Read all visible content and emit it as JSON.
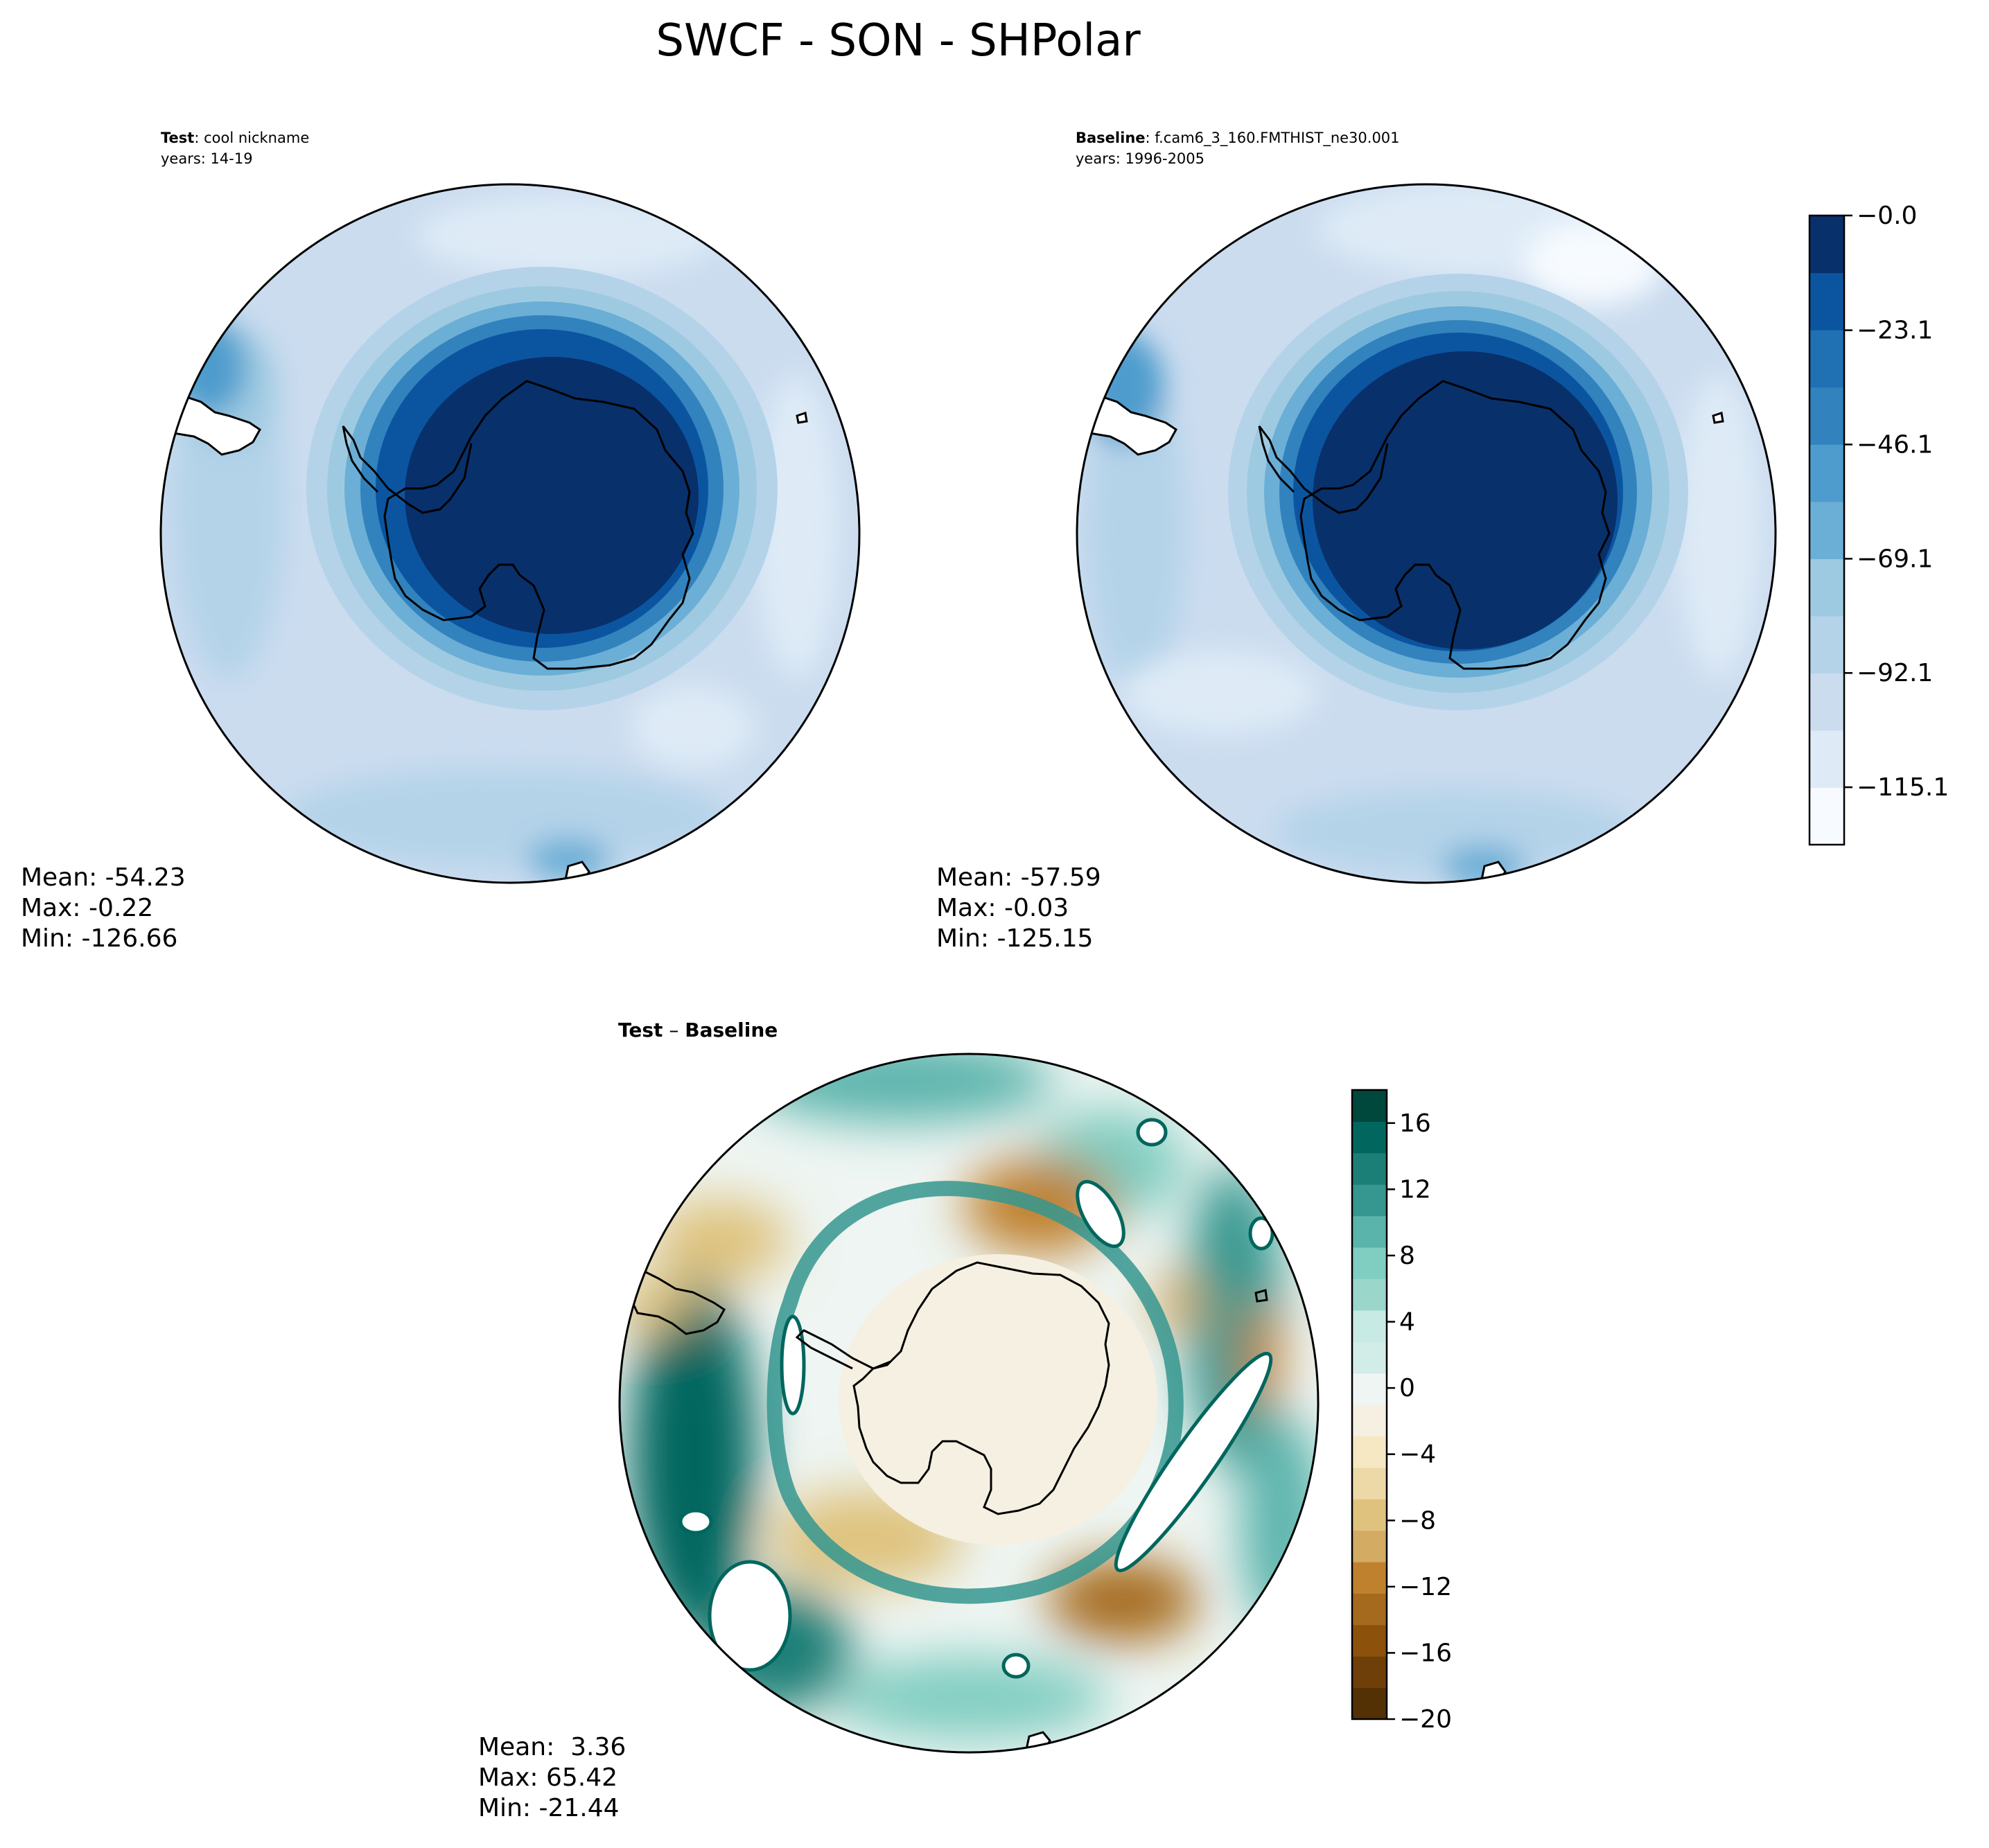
{
  "title": "SWCF - SON - SHPolar",
  "colors": {
    "blues": [
      "#f7fbff",
      "#deebf7",
      "#cbdcef",
      "#b4d3e9",
      "#9ecae1",
      "#6baed6",
      "#4e9ccd",
      "#3182bd",
      "#2070b4",
      "#0b55a0",
      "#08306b"
    ],
    "brbg": [
      "#543005",
      "#6e3f08",
      "#8c510a",
      "#a66a1e",
      "#bf812d",
      "#d4ab63",
      "#dfc27d",
      "#ecd9a7",
      "#f6e8c3",
      "#f5f0e1",
      "#eef5f2",
      "#d2ece7",
      "#c7eae5",
      "#9bd6cb",
      "#80cdc1",
      "#5ab4ac",
      "#35978f",
      "#1b7f77",
      "#01665e",
      "#00473c"
    ]
  },
  "chart_data": [
    {
      "type": "heatmap",
      "projection": "south-polar-stereographic",
      "label_bold": "Test",
      "label_text": ": cool nickname",
      "years": "years: 14-19",
      "stats": {
        "mean": "Mean: -54.23",
        "max": "Max: -0.22",
        "min": "Min: -126.66"
      }
    },
    {
      "type": "heatmap",
      "projection": "south-polar-stereographic",
      "label_bold": "Baseline",
      "label_text": ": f.cam6_3_160.FMTHIST_ne30.001",
      "years": "years: 1996-2005",
      "stats": {
        "mean": "Mean: -57.59",
        "max": "Max: -0.03",
        "min": "Min: -125.15"
      }
    },
    {
      "type": "heatmap",
      "projection": "south-polar-stereographic",
      "label_bold": "Test",
      "label_text": " – ",
      "label_bold2": "Baseline",
      "stats": {
        "mean": "Mean:  3.36",
        "max": "Max: 65.42",
        "min": "Min: -21.44"
      }
    }
  ],
  "colorbar_top": {
    "vmin": -126.66,
    "vmax": 0,
    "levels": 11,
    "ticks": [
      "−0.0",
      "−23.1",
      "−46.1",
      "−69.1",
      "−92.1",
      "−115.1"
    ]
  },
  "colorbar_bottom": {
    "vmin": -20,
    "vmax": 18,
    "levels": 20,
    "ticks": [
      "16",
      "12",
      "8",
      "4",
      "0",
      "−4",
      "−8",
      "−12",
      "−16",
      "−20"
    ]
  }
}
